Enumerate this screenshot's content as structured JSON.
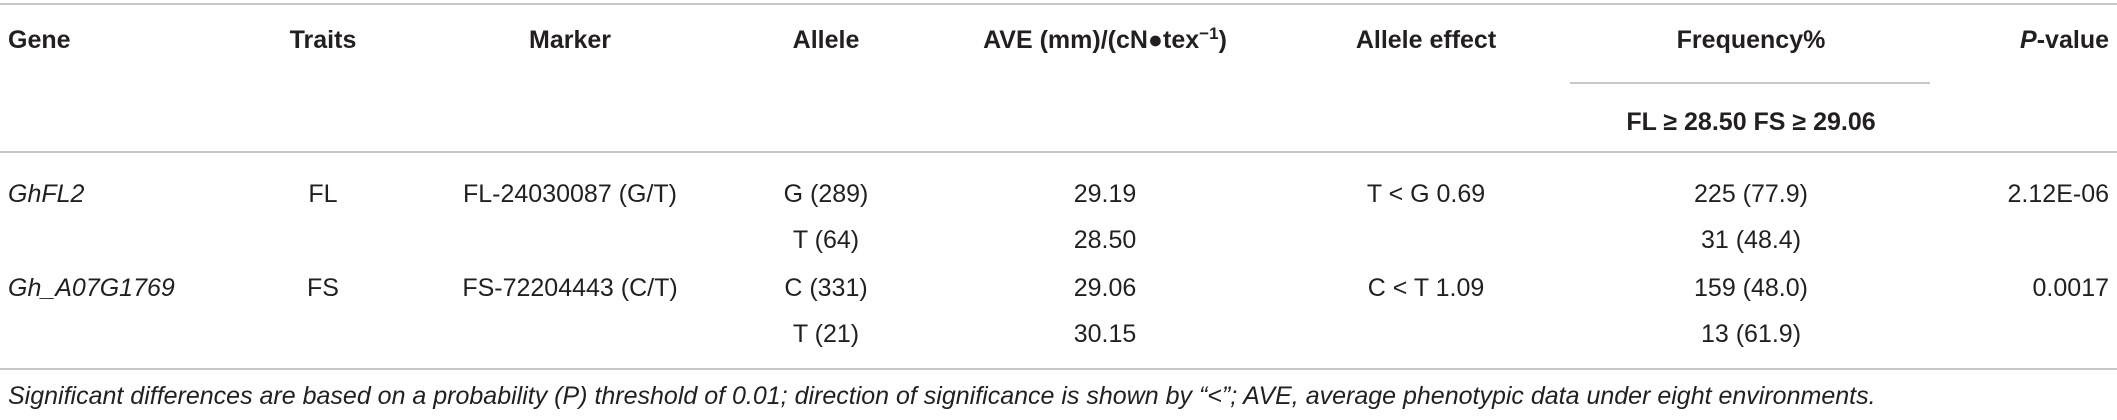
{
  "header": {
    "gene": "Gene",
    "traits": "Traits",
    "marker": "Marker",
    "allele": "Allele",
    "ave_prefix": "AVE (mm)/(cN●tex",
    "ave_sup": "−1",
    "ave_suffix": ")",
    "allele_effect": "Allele effect",
    "frequency": "Frequency%",
    "p_letter": "P",
    "p_suffix": "-value",
    "freq_sub": "FL ≥ 28.50 FS ≥ 29.06"
  },
  "rows": [
    {
      "gene": "GhFL2",
      "trait": "FL",
      "marker": "FL-24030087 (G/T)",
      "allele": "G (289)",
      "ave": "29.19",
      "effect": "T < G 0.69",
      "frequency": "225 (77.9)",
      "p": "2.12E-06"
    },
    {
      "gene": "",
      "trait": "",
      "marker": "",
      "allele": "T (64)",
      "ave": "28.50",
      "effect": "",
      "frequency": "31 (48.4)",
      "p": ""
    },
    {
      "gene": "Gh_A07G1769",
      "trait": "FS",
      "marker": "FS-72204443 (C/T)",
      "allele": "C (331)",
      "ave": "29.06",
      "effect": "C < T 1.09",
      "frequency": "159 (48.0)",
      "p": "0.0017"
    },
    {
      "gene": "",
      "trait": "",
      "marker": "",
      "allele": "T (21)",
      "ave": "30.15",
      "effect": "",
      "frequency": "13 (61.9)",
      "p": ""
    }
  ],
  "footnote": "Significant differences are based on a probability (P) threshold of 0.01; direction of significance is shown by “<”; AVE, average phenotypic data under eight environments."
}
